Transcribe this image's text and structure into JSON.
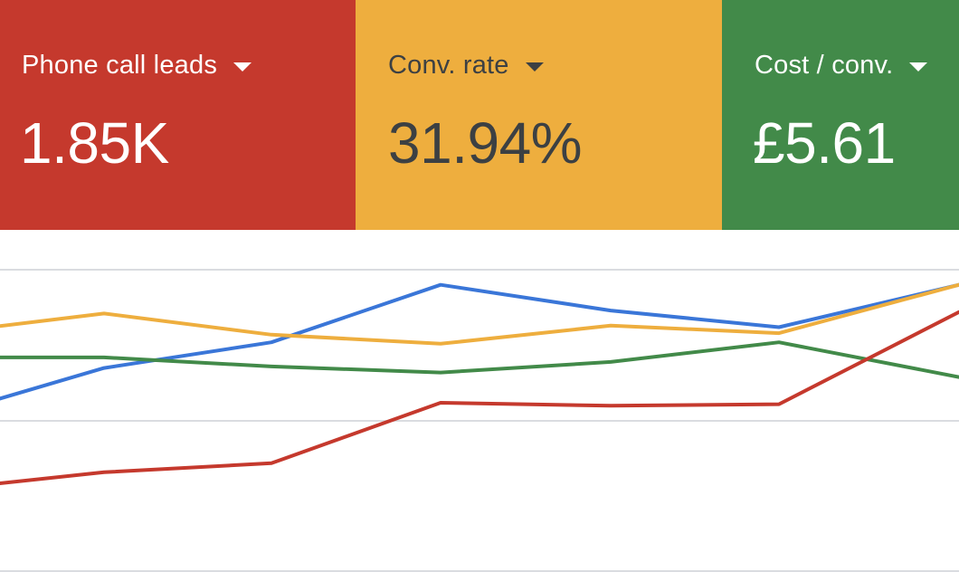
{
  "metrics": [
    {
      "label": "Phone call leads",
      "value": "1.85K",
      "bg": "#c5392d",
      "fg": "#ffffff"
    },
    {
      "label": "Conv. rate",
      "value": "31.94%",
      "bg": "#eeae3e",
      "fg": "#3c4043"
    },
    {
      "label": "Cost / conv.",
      "value": "£5.61",
      "bg": "#428a49",
      "fg": "#ffffff"
    }
  ],
  "chart_data": {
    "type": "line",
    "x": [
      0,
      1,
      2,
      3,
      4,
      5,
      6
    ],
    "grid": true,
    "series": [
      {
        "color": "#3a76d8",
        "values": [
          0.13,
          0.35,
          0.52,
          0.9,
          0.73,
          0.62,
          0.9
        ]
      },
      {
        "color": "#eeae3e",
        "values": [
          0.62,
          0.71,
          0.57,
          0.51,
          0.63,
          0.58,
          0.9
        ]
      },
      {
        "color": "#428a49",
        "values": [
          0.42,
          0.42,
          0.36,
          0.32,
          0.39,
          0.52,
          0.29
        ]
      },
      {
        "color": "#c5392d",
        "values": [
          -0.42,
          -0.34,
          -0.28,
          0.12,
          0.1,
          0.11,
          0.72
        ]
      }
    ]
  }
}
